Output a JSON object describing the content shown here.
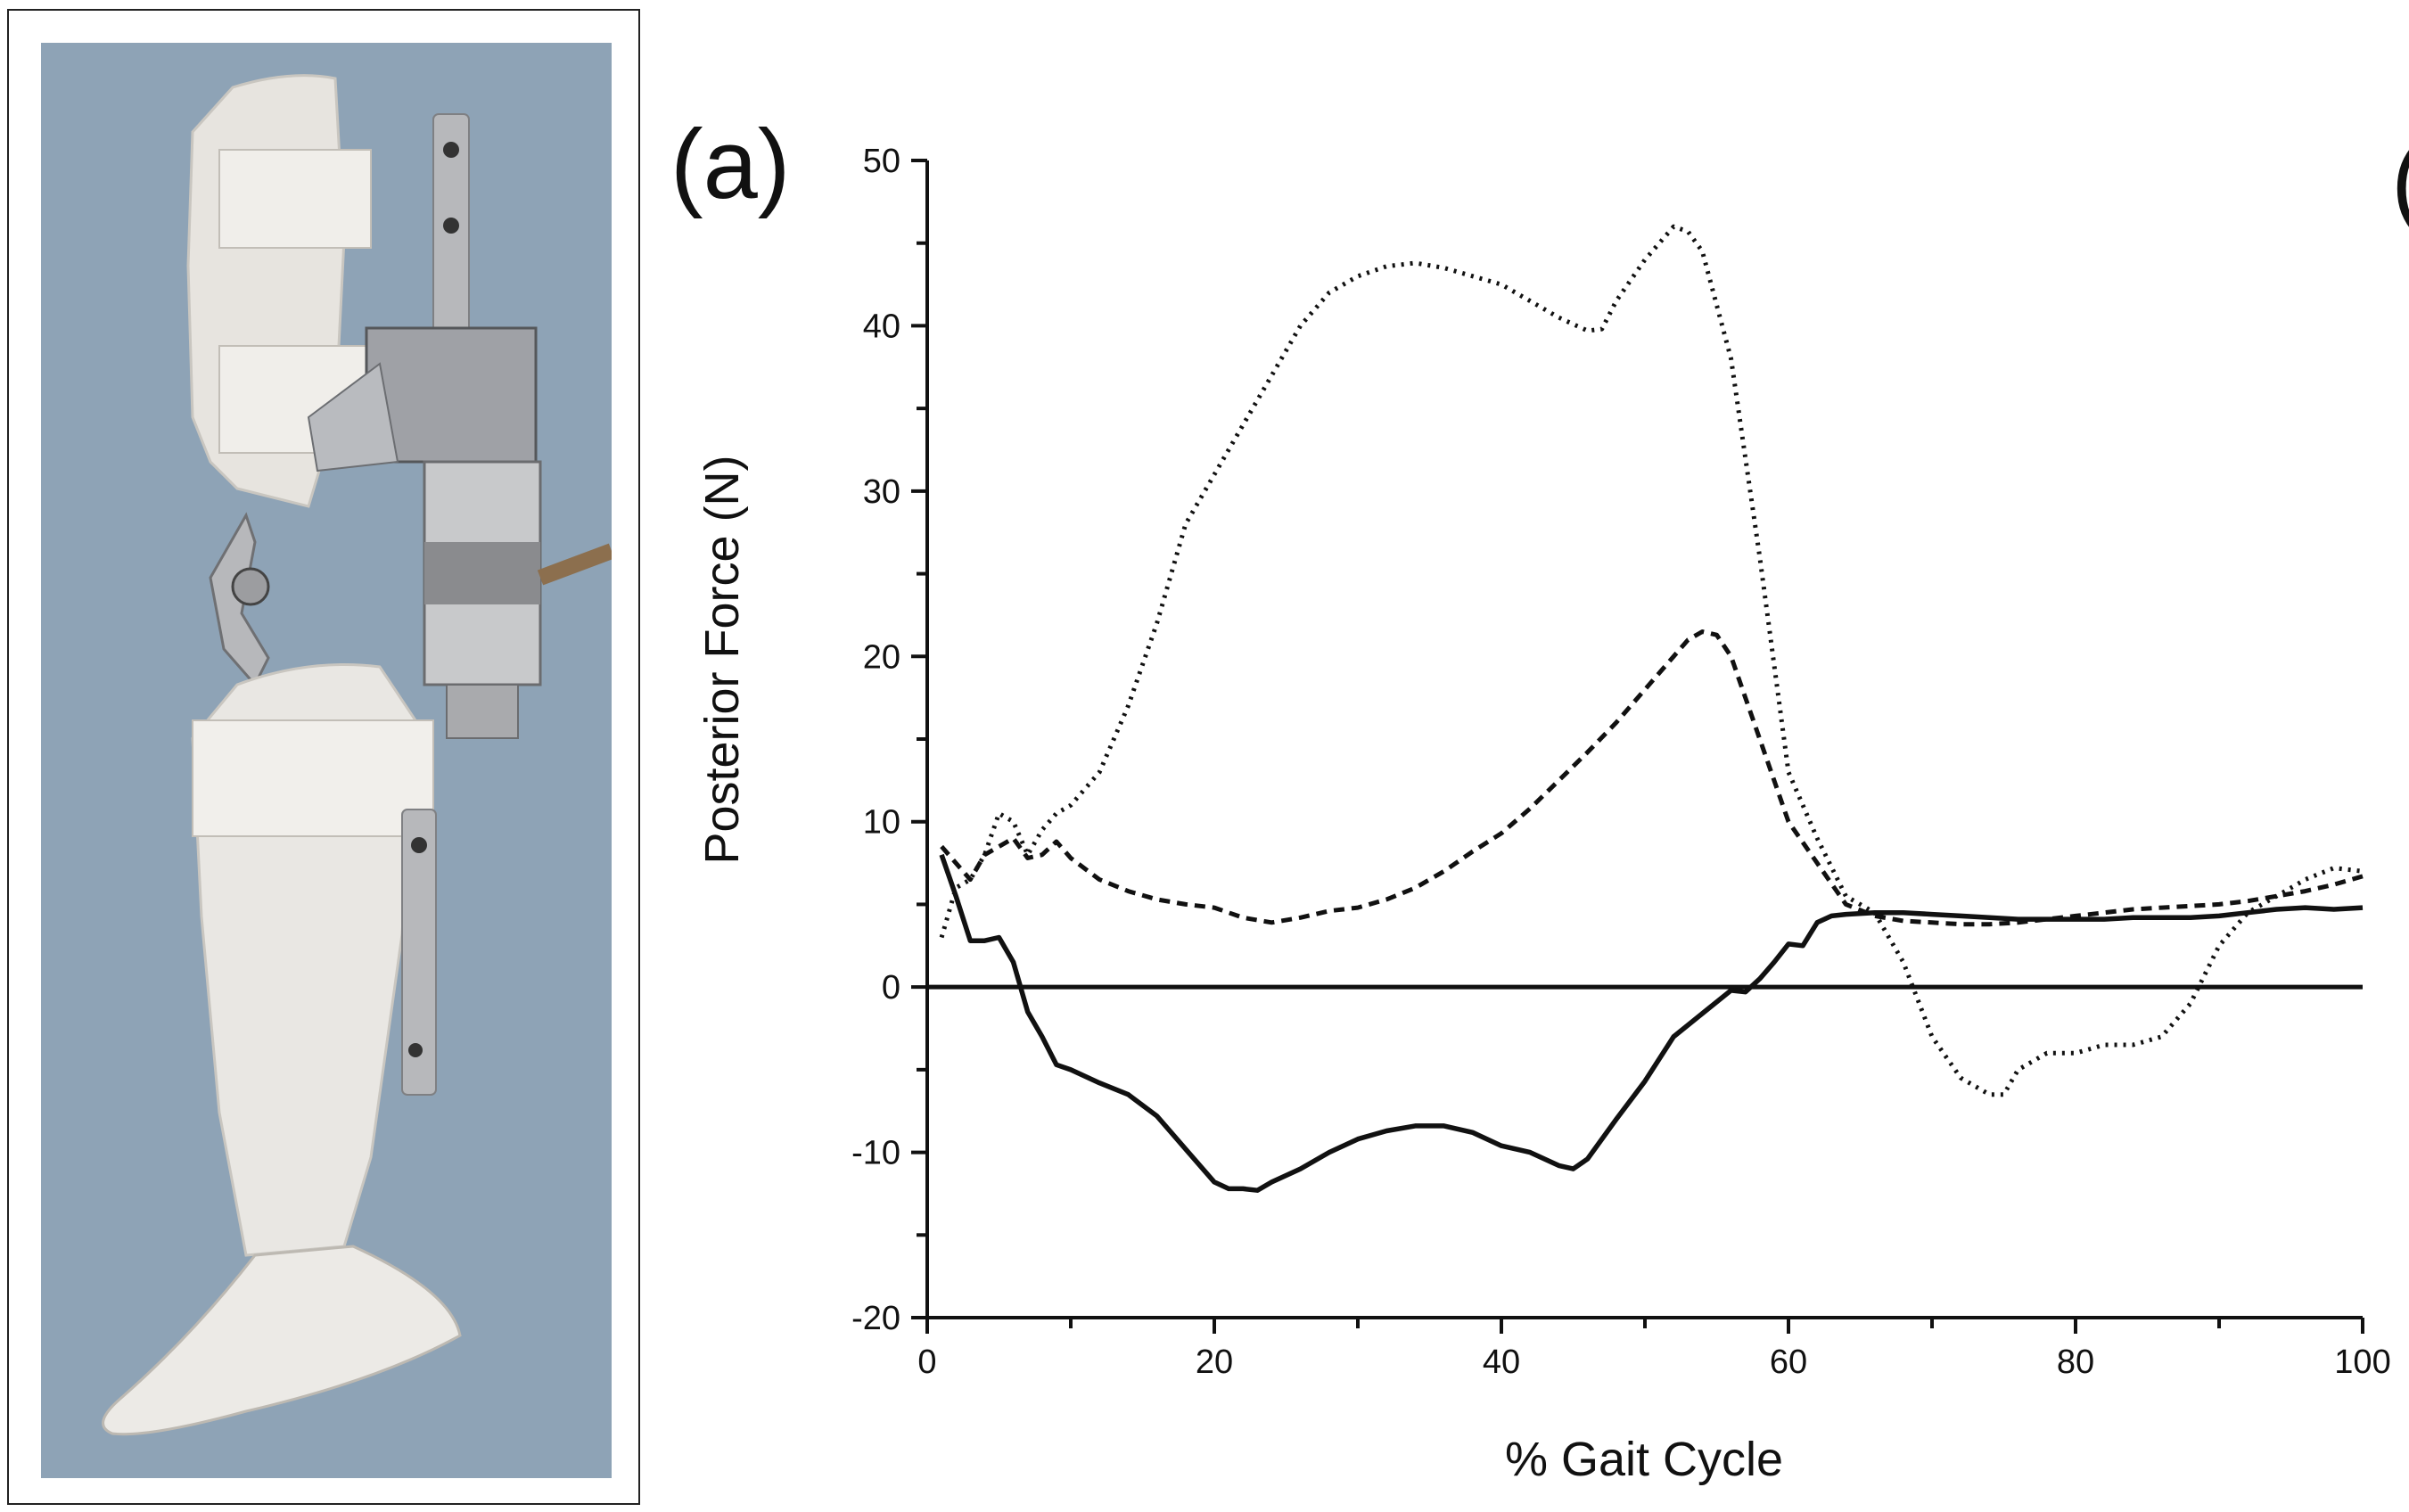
{
  "panel_label": "(a)",
  "panel_label_cut": "(",
  "photo": {
    "subject": "knee-ankle-foot orthosis with force sensor",
    "background_color": "#8ea3b6",
    "shell_color": "#e8e6e2"
  },
  "chart_data": {
    "type": "line",
    "xlabel": "% Gait Cycle",
    "ylabel": "Posterior Force (N)",
    "xlim": [
      0,
      100
    ],
    "ylim": [
      -20,
      50
    ],
    "xticks": [
      0,
      20,
      40,
      60,
      80,
      100
    ],
    "yticks": [
      -20,
      -10,
      0,
      10,
      20,
      30,
      40,
      50
    ],
    "grid": false,
    "zero_line": true,
    "series": [
      {
        "style": "dotted",
        "color": "#111111",
        "x": [
          1,
          2,
          3,
          4,
          5,
          6,
          7,
          8,
          9,
          10,
          12,
          14,
          16,
          18,
          20,
          22,
          24,
          26,
          28,
          30,
          32,
          34,
          36,
          38,
          40,
          42,
          44,
          46,
          47,
          48,
          50,
          52,
          53,
          54,
          56,
          58,
          60,
          62,
          64,
          66,
          68,
          70,
          72,
          74,
          75,
          76,
          78,
          80,
          82,
          84,
          86,
          88,
          90,
          92,
          94,
          96,
          98,
          100
        ],
        "y": [
          3,
          6,
          6.5,
          8,
          10.5,
          10,
          8,
          9.5,
          10.5,
          11,
          13,
          17,
          22,
          28,
          31,
          34,
          37,
          40,
          42,
          43,
          43.6,
          43.8,
          43.5,
          43,
          42.5,
          41.5,
          40.5,
          39.7,
          39.8,
          41.5,
          44,
          46,
          45.7,
          44.5,
          38,
          26,
          13,
          9,
          5.5,
          4.5,
          1.5,
          -3,
          -5.5,
          -6.5,
          -6.5,
          -5,
          -4,
          -4,
          -3.5,
          -3.5,
          -3,
          -1,
          2.5,
          4.5,
          5.5,
          6.5,
          7.2,
          7
        ]
      },
      {
        "style": "dashed",
        "color": "#111111",
        "x": [
          1,
          2,
          3,
          4,
          5,
          6,
          7,
          8,
          9,
          10,
          12,
          14,
          16,
          18,
          20,
          22,
          24,
          26,
          28,
          30,
          32,
          34,
          36,
          38,
          40,
          42,
          44,
          46,
          48,
          50,
          52,
          53,
          54,
          55,
          56,
          58,
          60,
          62,
          64,
          66,
          68,
          70,
          72,
          74,
          76,
          78,
          80,
          82,
          84,
          86,
          88,
          90,
          92,
          94,
          96,
          98,
          100
        ],
        "y": [
          8.5,
          7.5,
          6.5,
          8,
          8.5,
          9,
          7.8,
          8,
          8.8,
          7.8,
          6.5,
          5.8,
          5.3,
          5,
          4.8,
          4.2,
          3.9,
          4.2,
          4.6,
          4.8,
          5.3,
          6,
          7,
          8.2,
          9.3,
          10.8,
          12.5,
          14.2,
          16,
          18,
          20,
          21,
          21.5,
          21.3,
          20,
          15,
          10,
          7.5,
          5,
          4.3,
          4,
          3.9,
          3.8,
          3.8,
          3.9,
          4.1,
          4.3,
          4.5,
          4.7,
          4.8,
          4.9,
          5,
          5.2,
          5.5,
          5.8,
          6.2,
          6.7
        ]
      },
      {
        "style": "solid",
        "color": "#111111",
        "x": [
          1,
          2,
          3,
          4,
          5,
          6,
          7,
          8,
          9,
          10,
          12,
          14,
          16,
          18,
          20,
          21,
          22,
          23,
          24,
          26,
          28,
          30,
          32,
          34,
          36,
          38,
          40,
          42,
          44,
          45,
          46,
          48,
          50,
          52,
          54,
          56,
          57,
          58,
          59,
          60,
          61,
          62,
          63,
          64,
          66,
          68,
          70,
          72,
          74,
          76,
          78,
          80,
          82,
          84,
          86,
          88,
          90,
          92,
          94,
          96,
          98,
          100
        ],
        "y": [
          8,
          5.5,
          2.8,
          2.8,
          3,
          1.5,
          -1.5,
          -3,
          -4.7,
          -5,
          -5.8,
          -6.5,
          -7.8,
          -9.8,
          -11.8,
          -12.2,
          -12.2,
          -12.3,
          -11.8,
          -11,
          -10,
          -9.2,
          -8.7,
          -8.4,
          -8.4,
          -8.8,
          -9.6,
          -10,
          -10.8,
          -11,
          -10.4,
          -8,
          -5.7,
          -3,
          -1.6,
          -0.2,
          -0.3,
          0.5,
          1.5,
          2.6,
          2.5,
          3.9,
          4.3,
          4.4,
          4.5,
          4.5,
          4.4,
          4.3,
          4.2,
          4.1,
          4.1,
          4.1,
          4.1,
          4.2,
          4.2,
          4.2,
          4.3,
          4.5,
          4.7,
          4.8,
          4.7,
          4.8
        ]
      }
    ]
  }
}
